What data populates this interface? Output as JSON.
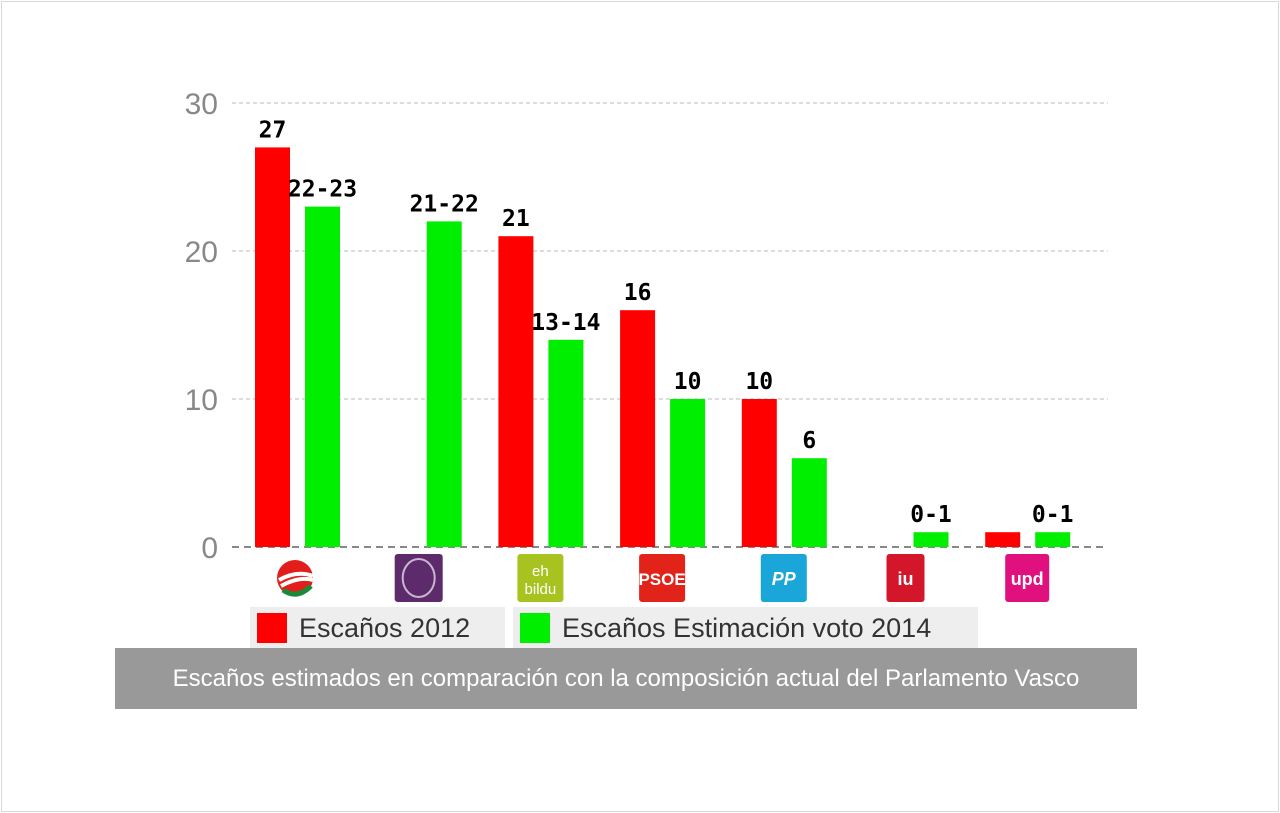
{
  "chart_data": {
    "type": "bar",
    "title": "",
    "xlabel": "",
    "ylabel": "",
    "ylim": [
      0,
      30
    ],
    "yticks": [
      0,
      10,
      20,
      30
    ],
    "grid": true,
    "categories": [
      "PNV",
      "Podemos",
      "EH Bildu",
      "PSOE",
      "PP",
      "IU",
      "UPyD"
    ],
    "category_logo_text": [
      "",
      "",
      "eh bildu",
      "PSOE",
      "PP",
      "iu",
      "upd"
    ],
    "series": [
      {
        "name": "Escaños 2012",
        "color": "#ff0000",
        "values": [
          27,
          0,
          21,
          16,
          10,
          0,
          1
        ],
        "labels": [
          "27",
          "",
          "21",
          "16",
          "10",
          "",
          ""
        ]
      },
      {
        "name": "Escaños Estimación voto 2014",
        "color": "#00ee00",
        "values": [
          23,
          22,
          14,
          10,
          6,
          1,
          1
        ],
        "labels": [
          "22-23",
          "21-22",
          "13-14",
          "10",
          "6",
          "0-1",
          "0-1"
        ]
      }
    ],
    "legend_position": "bottom-left"
  },
  "caption": "Escaños estimados en comparación con la composición actual del Parlamento Vasco"
}
